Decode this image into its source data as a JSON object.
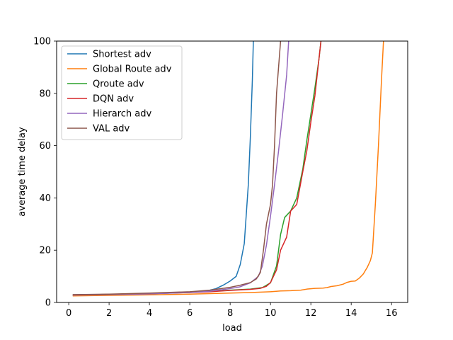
{
  "chart_data": {
    "type": "line",
    "xlabel": "load",
    "ylabel": "average time delay",
    "xlim": [
      -0.6,
      16.8
    ],
    "ylim": [
      0,
      100
    ],
    "xticks": [
      0,
      2,
      4,
      6,
      8,
      10,
      12,
      14,
      16
    ],
    "yticks": [
      0,
      20,
      40,
      60,
      80,
      100
    ],
    "legend_position": "top-left",
    "grid": false,
    "series": [
      {
        "name": "Shortest adv",
        "color": "#1f77b4",
        "points": [
          [
            0.2,
            2.6
          ],
          [
            1,
            2.7
          ],
          [
            2,
            2.9
          ],
          [
            3,
            3.1
          ],
          [
            4,
            3.3
          ],
          [
            5,
            3.6
          ],
          [
            6,
            3.9
          ],
          [
            6.5,
            4.2
          ],
          [
            7,
            4.7
          ],
          [
            7.3,
            5.3
          ],
          [
            7.7,
            6.8
          ],
          [
            8,
            8.2
          ],
          [
            8.3,
            10
          ],
          [
            8.5,
            14.5
          ],
          [
            8.7,
            22.5
          ],
          [
            8.9,
            45
          ],
          [
            9.0,
            63
          ],
          [
            9.1,
            85
          ],
          [
            9.15,
            100
          ]
        ]
      },
      {
        "name": "Global Route adv",
        "color": "#ff7f0e",
        "points": [
          [
            0.2,
            2.5
          ],
          [
            2,
            2.7
          ],
          [
            4,
            2.9
          ],
          [
            6,
            3.2
          ],
          [
            8,
            3.6
          ],
          [
            9,
            3.8
          ],
          [
            10,
            4.1
          ],
          [
            10.5,
            4.4
          ],
          [
            11,
            4.5
          ],
          [
            11.5,
            4.7
          ],
          [
            11.8,
            5.1
          ],
          [
            12.2,
            5.4
          ],
          [
            12.6,
            5.5
          ],
          [
            12.8,
            5.7
          ],
          [
            13,
            6.1
          ],
          [
            13.3,
            6.4
          ],
          [
            13.6,
            7.0
          ],
          [
            13.8,
            7.7
          ],
          [
            14,
            8.1
          ],
          [
            14.2,
            8.2
          ],
          [
            14.4,
            9.3
          ],
          [
            14.6,
            10.9
          ],
          [
            14.8,
            13.5
          ],
          [
            14.95,
            16
          ],
          [
            15.05,
            19
          ],
          [
            15.2,
            38
          ],
          [
            15.35,
            60
          ],
          [
            15.5,
            85
          ],
          [
            15.6,
            100
          ]
        ]
      },
      {
        "name": "Qroute adv",
        "color": "#2ca02c",
        "points": [
          [
            0.2,
            2.9
          ],
          [
            2,
            3.1
          ],
          [
            4,
            3.4
          ],
          [
            6,
            3.9
          ],
          [
            7,
            4.2
          ],
          [
            8,
            4.7
          ],
          [
            9,
            5.1
          ],
          [
            9.6,
            5.7
          ],
          [
            10,
            7.5
          ],
          [
            10.3,
            14
          ],
          [
            10.5,
            26
          ],
          [
            10.7,
            32.5
          ],
          [
            11,
            35
          ],
          [
            11.3,
            40
          ],
          [
            11.6,
            51
          ],
          [
            11.8,
            62
          ],
          [
            12,
            72
          ],
          [
            12.2,
            82
          ],
          [
            12.4,
            93
          ],
          [
            12.5,
            100
          ]
        ]
      },
      {
        "name": "DQN adv",
        "color": "#d62728",
        "points": [
          [
            0.2,
            2.9
          ],
          [
            2,
            3.1
          ],
          [
            4,
            3.4
          ],
          [
            6,
            3.8
          ],
          [
            7,
            4.1
          ],
          [
            8,
            4.6
          ],
          [
            9,
            5.0
          ],
          [
            9.5,
            5.4
          ],
          [
            9.8,
            6.2
          ],
          [
            10,
            7.6
          ],
          [
            10.3,
            12.5
          ],
          [
            10.5,
            20
          ],
          [
            10.8,
            25
          ],
          [
            11,
            35
          ],
          [
            11.3,
            37.5
          ],
          [
            11.6,
            50
          ],
          [
            11.8,
            58
          ],
          [
            12,
            69
          ],
          [
            12.2,
            79
          ],
          [
            12.4,
            93
          ],
          [
            12.5,
            100
          ]
        ]
      },
      {
        "name": "Hierarch adv",
        "color": "#9467bd",
        "points": [
          [
            0.2,
            2.8
          ],
          [
            2,
            3.0
          ],
          [
            4,
            3.3
          ],
          [
            6,
            3.8
          ],
          [
            7,
            4.3
          ],
          [
            8,
            5.3
          ],
          [
            8.5,
            6.0
          ],
          [
            9,
            7.5
          ],
          [
            9.4,
            10
          ],
          [
            9.6,
            14
          ],
          [
            9.8,
            22
          ],
          [
            10,
            33
          ],
          [
            10.2,
            45
          ],
          [
            10.4,
            58
          ],
          [
            10.6,
            72
          ],
          [
            10.8,
            87
          ],
          [
            10.9,
            100
          ]
        ]
      },
      {
        "name": "VAL adv",
        "color": "#8c564b",
        "points": [
          [
            0.2,
            3.0
          ],
          [
            2,
            3.2
          ],
          [
            4,
            3.6
          ],
          [
            6,
            4.1
          ],
          [
            7,
            4.7
          ],
          [
            8,
            5.8
          ],
          [
            8.5,
            6.6
          ],
          [
            9,
            7.6
          ],
          [
            9.3,
            9.0
          ],
          [
            9.5,
            11.5
          ],
          [
            9.65,
            20
          ],
          [
            9.8,
            30
          ],
          [
            10.0,
            37.5
          ],
          [
            10.1,
            45
          ],
          [
            10.2,
            60
          ],
          [
            10.3,
            80
          ],
          [
            10.45,
            95
          ],
          [
            10.5,
            100
          ]
        ]
      }
    ]
  }
}
